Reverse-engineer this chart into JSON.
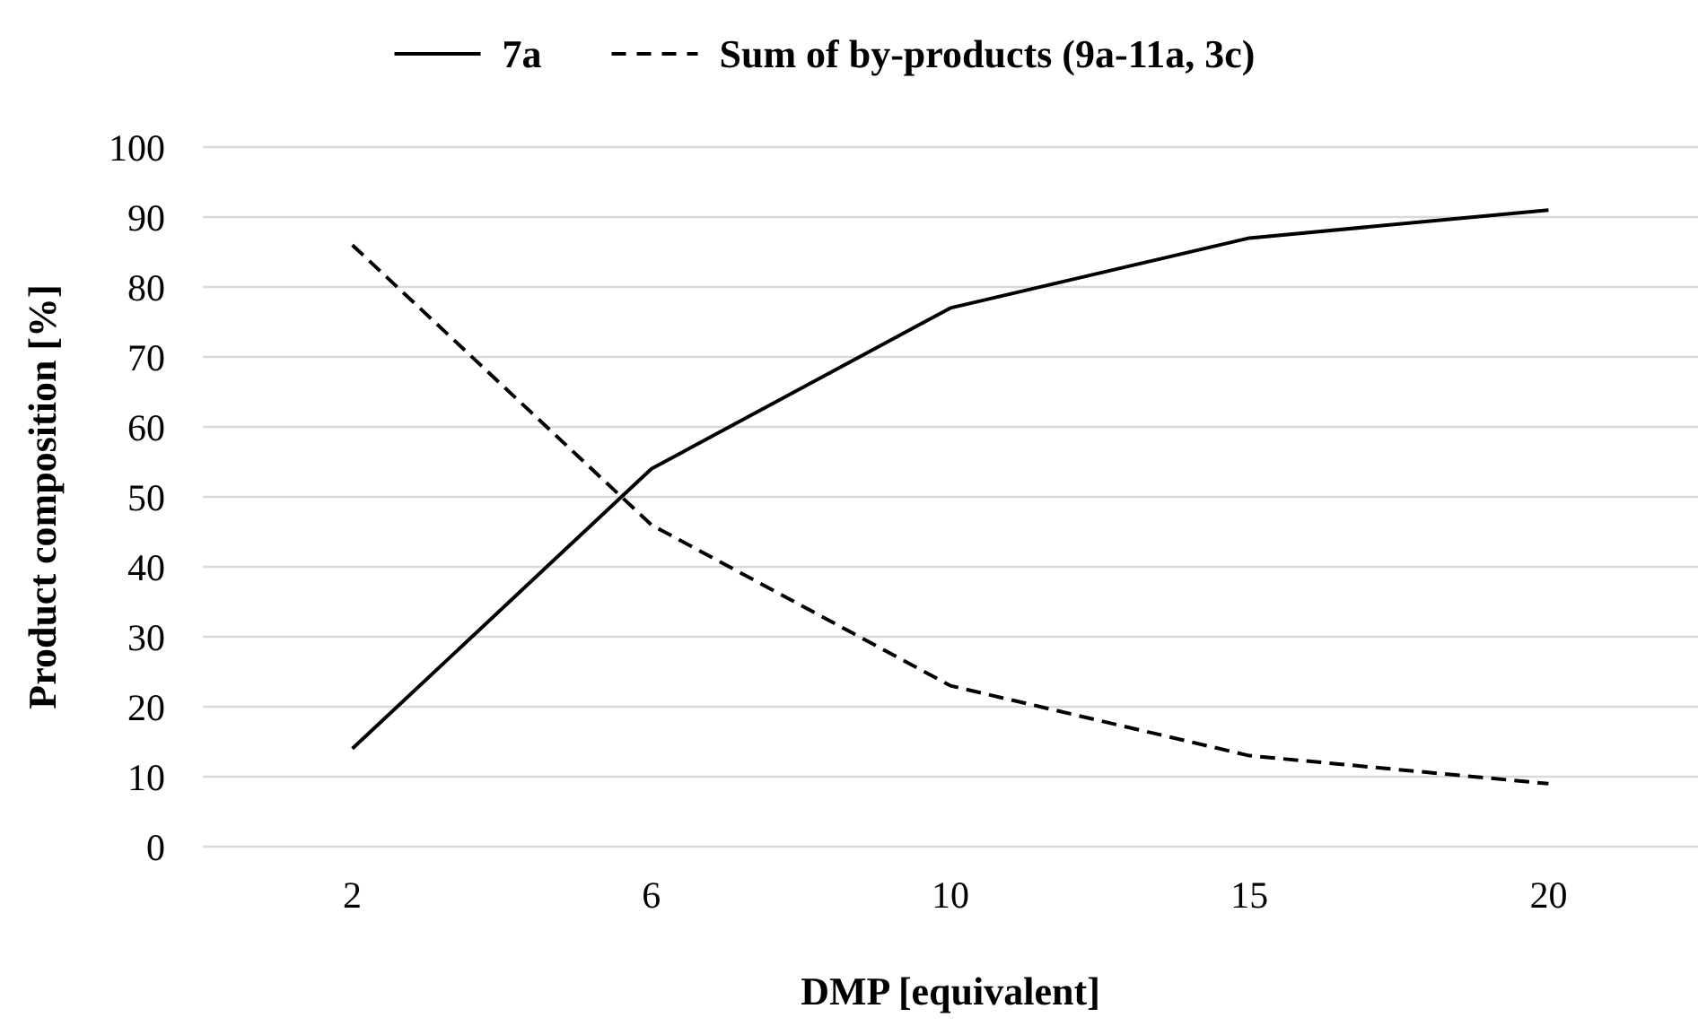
{
  "chart_data": {
    "type": "line",
    "xlabel": "DMP [equivalent]",
    "ylabel": "Product composition [%]",
    "categories": [
      "2",
      "6",
      "10",
      "15",
      "20"
    ],
    "series": [
      {
        "name": "7a",
        "color": "#000000",
        "values": [
          14,
          54,
          77,
          87,
          91
        ],
        "line_style": "solid"
      },
      {
        "name": "Sum of by-products (9a-11a, 3c)",
        "color": "#000000",
        "values": [
          86,
          46,
          23,
          13,
          9
        ],
        "line_style": "dashed"
      }
    ],
    "ylim": [
      0,
      100
    ],
    "yticks": [
      0,
      10,
      20,
      30,
      40,
      50,
      60,
      70,
      80,
      90,
      100
    ],
    "grid": "y",
    "legend": "top",
    "marker": "none"
  }
}
